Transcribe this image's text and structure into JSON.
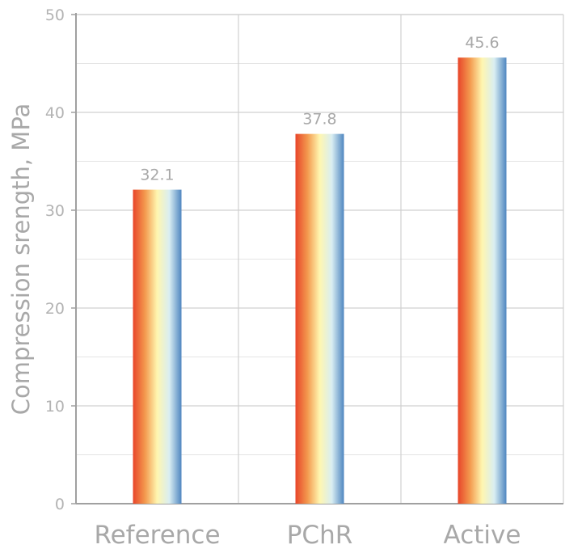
{
  "chart_data": {
    "type": "bar",
    "title": "",
    "xlabel": "",
    "ylabel": "Compression srength, MPa",
    "categories": [
      "Reference",
      "PChR",
      "Active"
    ],
    "values": [
      32.1,
      37.8,
      45.6
    ],
    "value_labels": [
      "32.1",
      "37.8",
      "45.6"
    ],
    "ylim": [
      0,
      50
    ],
    "yticks": [
      0,
      10,
      20,
      30,
      40,
      50
    ],
    "grid": true,
    "legend": "none",
    "bar_gradient": [
      "#e8452a",
      "#f39a4e",
      "#fff6b0",
      "#d9eef2",
      "#4f86c0"
    ],
    "axis_color": "#a0a0a0",
    "grid_color": "#d0d0d0"
  }
}
